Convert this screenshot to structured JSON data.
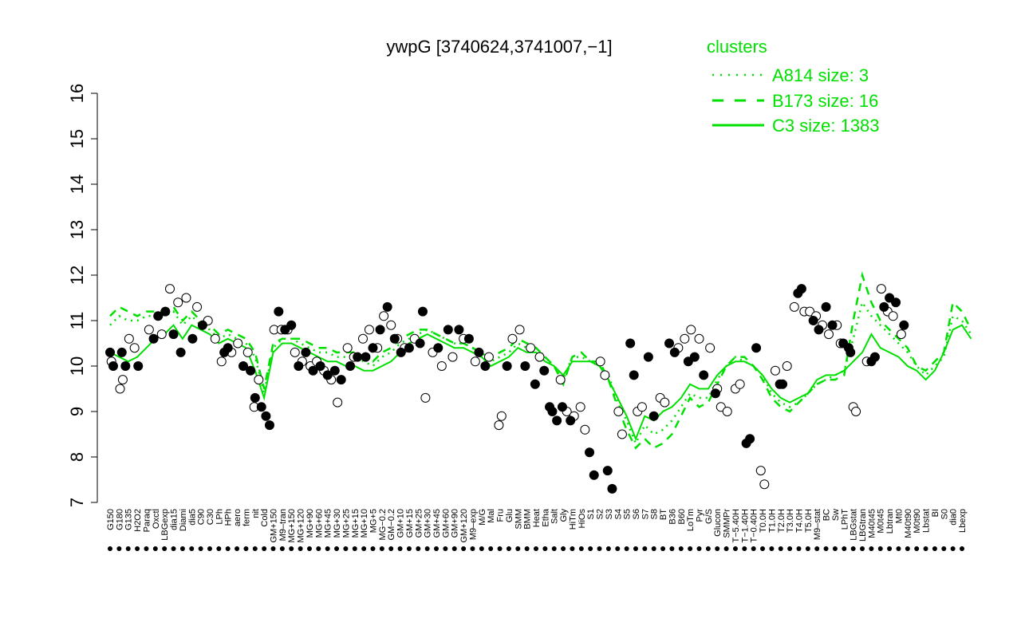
{
  "chart_data": {
    "type": "line",
    "title": "ywpG [3740624,3741007,−1]",
    "xlabel": "",
    "ylabel": "",
    "ylim": [
      7,
      16
    ],
    "y_ticks": [
      7,
      8,
      9,
      10,
      11,
      12,
      13,
      14,
      15,
      16
    ],
    "grid": false,
    "legend": {
      "title": "clusters",
      "placement": "top-right",
      "entries": [
        {
          "label": "A814 size: 3",
          "style": "dotted"
        },
        {
          "label": "B173 size: 16",
          "style": "dashed"
        },
        {
          "label": "C3 size: 1383",
          "style": "solid"
        }
      ]
    },
    "colors": {
      "series": "#00e000",
      "open_marker": "#ffffff",
      "filled_marker": "#000000"
    },
    "x_tick_labels": [
      "G150",
      "G180",
      "G135",
      "H2O2",
      "Paraq",
      "Oxctl",
      "LBGexp",
      "dia15",
      "Diami",
      "dia5",
      "C90",
      "C30",
      "LPh",
      "HPh",
      "aero",
      "ferm",
      "nit",
      "Cold",
      "GM+150",
      "M9–tran",
      "MG+150",
      "MG+120",
      "MG+90",
      "MG+60",
      "MG+45",
      "MG+30",
      "MG+25",
      "MG+15",
      "MG+10",
      "MG+5",
      "MG−0.2",
      "GM−0.2",
      "GM+10",
      "GM+15",
      "GM+25",
      "GM+30",
      "GM+45",
      "GM+60",
      "GM+90",
      "GM+120",
      "M9–exp",
      "M/G",
      "Mal",
      "Fru",
      "Glu",
      "SMM",
      "BMM",
      "Heat",
      "Etha",
      "Salt",
      "Gly",
      "HiTm",
      "HiOs",
      "S1",
      "S2",
      "S3",
      "S4",
      "S5",
      "S6",
      "S7",
      "S8",
      "BT",
      "B36",
      "B60",
      "LoTm",
      "Pyr",
      "G/S",
      "Glucon",
      "SMMPr",
      "T−5.40H",
      "T−1.40H",
      "T−0.40H",
      "T0.0H",
      "T1.0H",
      "T2.0H",
      "T3.0H",
      "T4.0H",
      "T5.0H",
      "M9–stat",
      "BC",
      "Sw",
      "LPhT",
      "LBGstat",
      "LBGtran",
      "M40t45",
      "M0t45",
      "Lbtran",
      "Mt0",
      "M40t90",
      "M0t90",
      "Lbstat",
      "BI",
      "S0",
      "dia0",
      "Lbexp"
    ],
    "series": [
      {
        "style": "solid",
        "values": [
          10.3,
          10.2,
          10.1,
          10.2,
          10.4,
          10.6,
          10.7,
          10.9,
          10.6,
          10.9,
          10.8,
          10.7,
          10.5,
          10.6,
          10.5,
          10.4,
          9.9,
          9.3,
          10.3,
          10.5,
          10.5,
          10.4,
          10.3,
          10.2,
          10.1,
          10.1,
          10.0,
          10.0,
          9.9,
          9.9,
          10.0,
          10.1,
          10.3,
          10.5,
          10.6,
          10.7,
          10.6,
          10.5,
          10.4,
          10.4,
          10.3,
          10.2,
          10.0,
          10.1,
          10.2,
          10.4,
          10.3,
          10.3,
          10.1,
          10.0,
          9.8,
          10.1,
          10.1,
          10.1,
          10.0,
          9.7,
          9.3,
          8.9,
          8.4,
          8.9,
          8.8,
          9.0,
          9.1,
          9.3,
          9.6,
          9.5,
          9.5,
          9.8,
          10.0,
          10.1,
          10.1,
          10.0,
          9.8,
          9.5,
          9.3,
          9.2,
          9.3,
          9.4,
          9.7,
          9.8,
          9.8,
          9.9,
          10.1,
          10.3,
          10.7,
          10.4,
          10.3,
          10.2,
          10.0,
          9.9,
          9.7,
          9.9,
          10.3,
          10.8,
          10.9,
          10.6
        ]
      },
      {
        "style": "dashed",
        "values": [
          11.1,
          11.3,
          11.2,
          11.1,
          11.2,
          11.2,
          11.2,
          11.3,
          11.0,
          11.2,
          11.0,
          10.9,
          10.7,
          10.8,
          10.7,
          10.6,
          10.3,
          9.5,
          10.5,
          10.6,
          10.6,
          10.6,
          10.5,
          10.4,
          10.4,
          10.3,
          10.3,
          10.3,
          10.2,
          10.1,
          10.3,
          10.4,
          10.6,
          10.7,
          10.8,
          10.8,
          10.7,
          10.6,
          10.5,
          10.5,
          10.4,
          10.3,
          10.2,
          10.3,
          10.4,
          10.6,
          10.5,
          10.4,
          10.2,
          10.0,
          9.6,
          10.2,
          10.3,
          10.1,
          10.1,
          9.7,
          9.1,
          8.6,
          8.2,
          8.4,
          8.2,
          8.3,
          8.5,
          8.9,
          9.3,
          9.1,
          9.2,
          9.6,
          10.0,
          10.2,
          10.2,
          10.0,
          9.7,
          9.3,
          9.1,
          9.0,
          9.2,
          9.4,
          9.6,
          9.7,
          9.7,
          9.8,
          11.0,
          12.0,
          11.4,
          11.0,
          10.8,
          10.6,
          10.4,
          10.0,
          9.9,
          10.1,
          10.3,
          11.4,
          11.2,
          10.8
        ]
      },
      {
        "style": "dotted",
        "values": [
          10.9,
          11.1,
          11.0,
          11.0,
          11.1,
          11.1,
          11.1,
          11.2,
          10.9,
          11.1,
          10.9,
          10.8,
          10.6,
          10.7,
          10.6,
          10.5,
          10.2,
          9.4,
          10.4,
          10.6,
          10.6,
          10.5,
          10.4,
          10.3,
          10.3,
          10.2,
          10.2,
          10.2,
          10.1,
          10.0,
          10.2,
          10.3,
          10.5,
          10.6,
          10.7,
          10.8,
          10.7,
          10.6,
          10.5,
          10.5,
          10.4,
          10.3,
          10.1,
          10.2,
          10.3,
          10.5,
          10.4,
          10.4,
          10.2,
          10.0,
          9.7,
          10.2,
          10.2,
          10.1,
          10.0,
          9.8,
          9.2,
          8.8,
          8.3,
          8.7,
          8.5,
          8.6,
          8.8,
          9.1,
          9.4,
          9.3,
          9.3,
          9.7,
          10.0,
          10.2,
          10.1,
          10.0,
          9.8,
          9.4,
          9.2,
          9.1,
          9.2,
          9.4,
          9.6,
          9.7,
          9.8,
          9.9,
          10.6,
          11.4,
          11.1,
          10.9,
          10.7,
          10.5,
          10.3,
          10.0,
          9.8,
          10.0,
          10.2,
          11.1,
          11.0,
          10.7
        ]
      }
    ],
    "points": {
      "open": [
        [
          0.15,
          10.1
        ],
        [
          1.1,
          9.5
        ],
        [
          1.4,
          9.7
        ],
        [
          2.1,
          10.6
        ],
        [
          2.7,
          10.4
        ],
        [
          4.3,
          10.8
        ],
        [
          5.7,
          10.7
        ],
        [
          6.6,
          11.7
        ],
        [
          7.5,
          11.4
        ],
        [
          8.4,
          11.5
        ],
        [
          9.6,
          11.3
        ],
        [
          10.8,
          11.0
        ],
        [
          11.6,
          10.6
        ],
        [
          12.3,
          10.1
        ],
        [
          13.4,
          10.3
        ],
        [
          14.1,
          10.5
        ],
        [
          15.2,
          10.3
        ],
        [
          15.9,
          9.1
        ],
        [
          16.4,
          9.7
        ],
        [
          18.1,
          10.8
        ],
        [
          18.9,
          10.8
        ],
        [
          19.6,
          10.8
        ],
        [
          20.4,
          10.3
        ],
        [
          21.2,
          10.1
        ],
        [
          22.1,
          10.0
        ],
        [
          22.8,
          10.1
        ],
        [
          23.6,
          9.9
        ],
        [
          24.4,
          9.7
        ],
        [
          25.1,
          9.2
        ],
        [
          26.2,
          10.4
        ],
        [
          26.9,
          10.2
        ],
        [
          27.9,
          10.6
        ],
        [
          28.6,
          10.8
        ],
        [
          29.5,
          10.4
        ],
        [
          30.2,
          11.1
        ],
        [
          31.0,
          10.9
        ],
        [
          31.7,
          10.6
        ],
        [
          32.5,
          10.4
        ],
        [
          33.6,
          10.6
        ],
        [
          34.8,
          9.3
        ],
        [
          35.6,
          10.3
        ],
        [
          36.6,
          10.0
        ],
        [
          37.8,
          10.2
        ],
        [
          39.0,
          10.6
        ],
        [
          40.3,
          10.1
        ],
        [
          41.8,
          10.2
        ],
        [
          42.9,
          8.7
        ],
        [
          43.2,
          8.9
        ],
        [
          44.4,
          10.6
        ],
        [
          45.2,
          10.8
        ],
        [
          46.4,
          10.4
        ],
        [
          47.4,
          10.2
        ],
        [
          49.7,
          9.7
        ],
        [
          50.4,
          9.0
        ],
        [
          51.2,
          8.9
        ],
        [
          51.9,
          9.1
        ],
        [
          52.4,
          8.6
        ],
        [
          54.1,
          10.1
        ],
        [
          54.6,
          9.8
        ],
        [
          56.1,
          9.0
        ],
        [
          56.5,
          8.5
        ],
        [
          58.2,
          9.0
        ],
        [
          58.7,
          9.1
        ],
        [
          60.7,
          9.3
        ],
        [
          61.2,
          9.2
        ],
        [
          62.7,
          10.4
        ],
        [
          63.4,
          10.6
        ],
        [
          64.1,
          10.8
        ],
        [
          65.0,
          10.6
        ],
        [
          66.2,
          10.4
        ],
        [
          67.0,
          9.5
        ],
        [
          67.4,
          9.1
        ],
        [
          68.1,
          9.0
        ],
        [
          69.0,
          9.5
        ],
        [
          69.5,
          9.6
        ],
        [
          71.8,
          7.7
        ],
        [
          72.2,
          7.4
        ],
        [
          73.4,
          9.9
        ],
        [
          74.7,
          10.0
        ],
        [
          75.5,
          11.3
        ],
        [
          76.6,
          11.2
        ],
        [
          77.2,
          11.2
        ],
        [
          77.9,
          11.1
        ],
        [
          78.6,
          10.9
        ],
        [
          79.3,
          10.7
        ],
        [
          80.2,
          10.9
        ],
        [
          80.6,
          10.5
        ],
        [
          82.0,
          9.1
        ],
        [
          82.3,
          9.0
        ],
        [
          83.5,
          10.1
        ],
        [
          85.1,
          11.7
        ],
        [
          85.8,
          11.2
        ],
        [
          86.4,
          11.1
        ],
        [
          87.3,
          10.7
        ]
      ],
      "filled": [
        [
          0.0,
          10.3
        ],
        [
          0.35,
          10.0
        ],
        [
          1.3,
          10.3
        ],
        [
          1.7,
          10.0
        ],
        [
          3.1,
          10.0
        ],
        [
          4.8,
          10.6
        ],
        [
          5.3,
          11.1
        ],
        [
          6.1,
          11.2
        ],
        [
          7.0,
          10.7
        ],
        [
          7.8,
          10.3
        ],
        [
          9.1,
          10.6
        ],
        [
          10.2,
          10.9
        ],
        [
          12.6,
          10.3
        ],
        [
          13.0,
          10.4
        ],
        [
          14.7,
          10.0
        ],
        [
          15.5,
          9.9
        ],
        [
          16.0,
          9.3
        ],
        [
          16.7,
          9.1
        ],
        [
          17.2,
          8.9
        ],
        [
          17.6,
          8.7
        ],
        [
          18.6,
          11.2
        ],
        [
          19.3,
          10.8
        ],
        [
          20.0,
          10.9
        ],
        [
          20.8,
          10.0
        ],
        [
          21.6,
          10.3
        ],
        [
          22.4,
          9.9
        ],
        [
          23.2,
          10.0
        ],
        [
          24.0,
          9.8
        ],
        [
          24.8,
          9.9
        ],
        [
          25.5,
          9.7
        ],
        [
          26.5,
          10.0
        ],
        [
          27.3,
          10.2
        ],
        [
          28.2,
          10.2
        ],
        [
          29.0,
          10.4
        ],
        [
          29.8,
          10.8
        ],
        [
          30.6,
          11.3
        ],
        [
          31.4,
          10.6
        ],
        [
          32.1,
          10.3
        ],
        [
          33.0,
          10.4
        ],
        [
          34.2,
          10.5
        ],
        [
          34.5,
          11.2
        ],
        [
          36.2,
          10.4
        ],
        [
          37.3,
          10.8
        ],
        [
          38.5,
          10.8
        ],
        [
          39.6,
          10.6
        ],
        [
          40.7,
          10.3
        ],
        [
          41.4,
          10.0
        ],
        [
          43.8,
          10.0
        ],
        [
          45.8,
          10.0
        ],
        [
          46.9,
          9.6
        ],
        [
          47.9,
          9.9
        ],
        [
          48.5,
          9.1
        ],
        [
          48.8,
          9.0
        ],
        [
          49.3,
          8.8
        ],
        [
          49.9,
          9.1
        ],
        [
          50.8,
          8.8
        ],
        [
          52.9,
          8.1
        ],
        [
          53.4,
          7.6
        ],
        [
          54.9,
          7.7
        ],
        [
          55.4,
          7.3
        ],
        [
          57.4,
          10.5
        ],
        [
          57.8,
          9.8
        ],
        [
          59.4,
          10.2
        ],
        [
          60.0,
          8.9
        ],
        [
          61.7,
          10.5
        ],
        [
          62.3,
          10.3
        ],
        [
          63.8,
          10.1
        ],
        [
          64.5,
          10.2
        ],
        [
          65.5,
          9.8
        ],
        [
          66.8,
          9.4
        ],
        [
          70.2,
          8.3
        ],
        [
          70.6,
          8.4
        ],
        [
          71.3,
          10.4
        ],
        [
          73.9,
          9.6
        ],
        [
          74.2,
          9.6
        ],
        [
          75.9,
          11.6
        ],
        [
          76.3,
          11.7
        ],
        [
          77.6,
          11.0
        ],
        [
          78.2,
          10.8
        ],
        [
          79.0,
          11.3
        ],
        [
          79.7,
          10.9
        ],
        [
          80.9,
          10.5
        ],
        [
          81.5,
          10.4
        ],
        [
          81.7,
          10.3
        ],
        [
          84.0,
          10.1
        ],
        [
          84.4,
          10.2
        ],
        [
          85.4,
          11.3
        ],
        [
          86.0,
          11.5
        ],
        [
          86.7,
          11.4
        ],
        [
          87.6,
          10.9
        ]
      ]
    }
  }
}
